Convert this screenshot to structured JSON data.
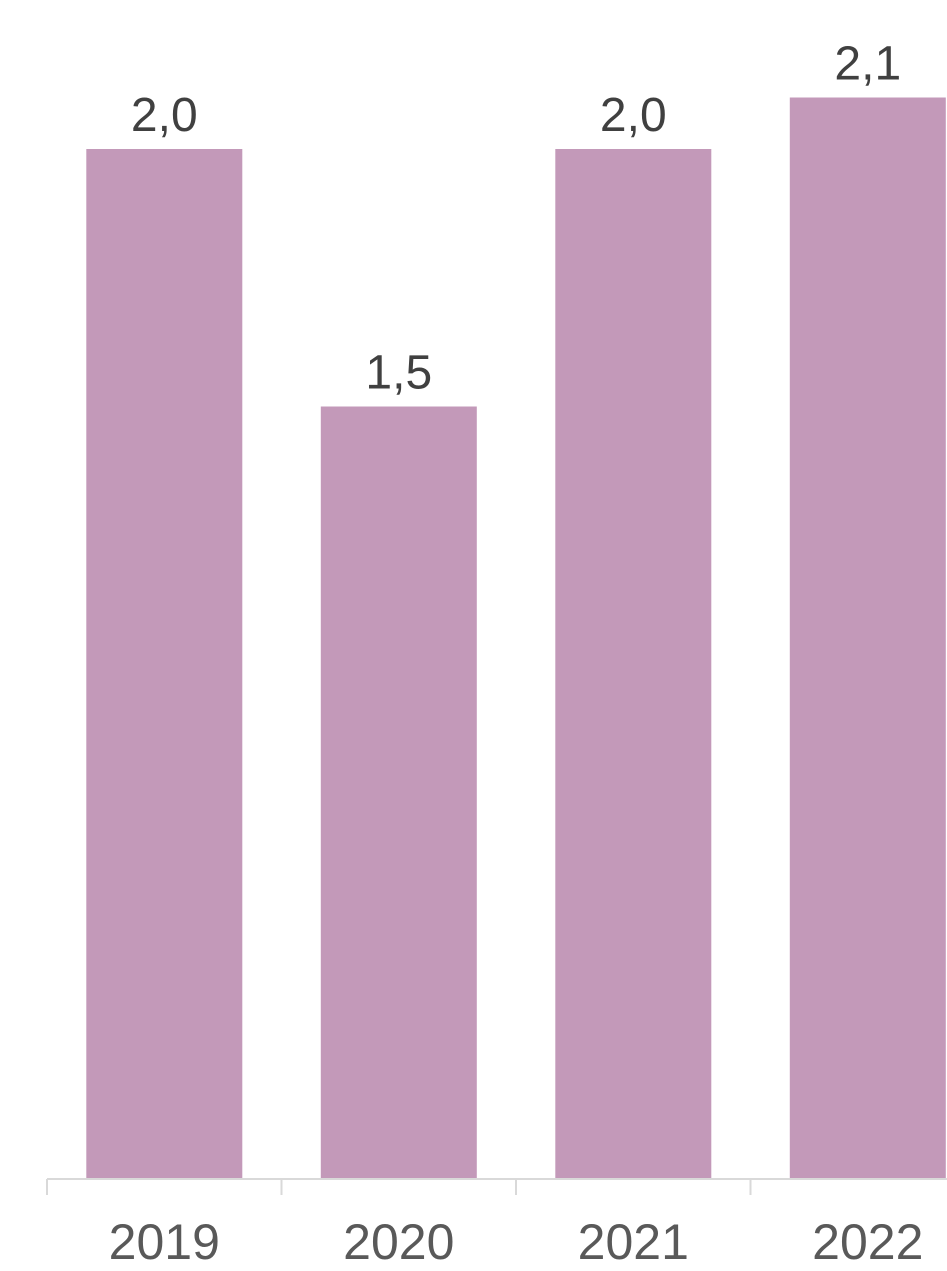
{
  "chart_data": {
    "type": "bar",
    "categories": [
      "2019",
      "2020",
      "2021",
      "2022"
    ],
    "values": [
      2.0,
      1.5,
      2.0,
      2.1
    ],
    "data_labels": [
      "2,0",
      "1,5",
      "2,0",
      "2,1"
    ],
    "title": "",
    "xlabel": "",
    "ylabel": "",
    "ylim": [
      0,
      2.2
    ],
    "grid": false,
    "legend": "none",
    "colors": {
      "bar": "#c399b9",
      "axis": "#d9d9d9",
      "label_text": "#404040",
      "tick_text": "#595959"
    }
  }
}
